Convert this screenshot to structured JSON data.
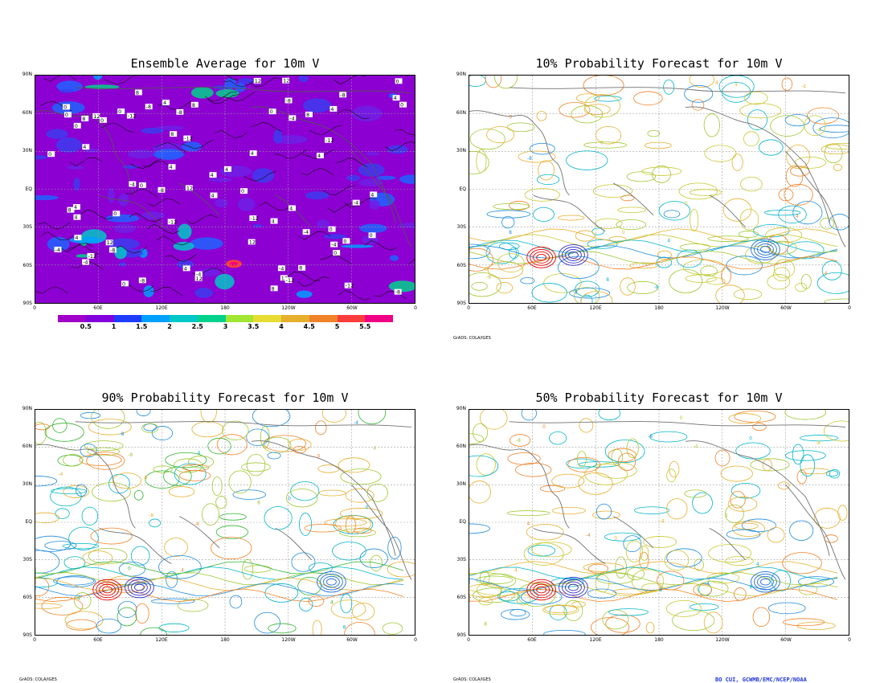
{
  "panels": [
    {
      "id": "ensemble",
      "title": "Ensemble Average for 10m V",
      "credit": ""
    },
    {
      "id": "p10",
      "title": "10% Probability Forecast for 10m V",
      "credit": "GrADS: COLA/IGES"
    },
    {
      "id": "p90",
      "title": "90% Probability Forecast for 10m V",
      "credit": "GrADS: COLA/IGES"
    },
    {
      "id": "p50",
      "title": "50% Probability Forecast for 10m V",
      "credit": "GrADS: COLA/IGES"
    }
  ],
  "axes": {
    "y_ticks": [
      "90N",
      "60N",
      "30N",
      "EQ",
      "30S",
      "60S",
      "90S"
    ],
    "x_ticks": [
      "0",
      "60E",
      "120E",
      "180",
      "120W",
      "60W",
      "0"
    ]
  },
  "colorbar": {
    "labels": [
      "0.5",
      "1",
      "1.5",
      "2",
      "2.5",
      "3",
      "3.5",
      "4",
      "4.5",
      "5",
      "5.5"
    ],
    "colors": [
      "#a000c8",
      "#8200dc",
      "#1e3cff",
      "#00a0ff",
      "#00c8c8",
      "#00d28c",
      "#a0e632",
      "#e6dc32",
      "#e6af2d",
      "#f08228",
      "#fa3c3c",
      "#f00082"
    ]
  },
  "footer": {
    "author": "BO CUI, GCWMB/EMC/NCEP/NOAA"
  },
  "chart_data": [
    {
      "type": "heatmap",
      "title": "Ensemble Average for 10m V",
      "xlabel": "",
      "ylabel": "",
      "xlim": [
        0,
        360
      ],
      "ylim": [
        -90,
        90
      ],
      "x_ticks": [
        "0",
        "60E",
        "120E",
        "180",
        "120W",
        "60W",
        "0"
      ],
      "y_ticks": [
        "90N",
        "60N",
        "30N",
        "EQ",
        "30S",
        "60S",
        "90S"
      ],
      "shading_levels": [
        0.5,
        1,
        1.5,
        2,
        2.5,
        3,
        3.5,
        4,
        4.5,
        5,
        5.5
      ],
      "contour_labels_visible": [
        "-4",
        "0",
        "4",
        "-8",
        "8",
        "-12",
        "12"
      ]
    },
    {
      "type": "heatmap",
      "title": "10% Probability Forecast for 10m V",
      "xlim": [
        0,
        360
      ],
      "ylim": [
        -90,
        90
      ],
      "x_ticks": [
        "0",
        "60E",
        "120E",
        "180",
        "120W",
        "60W",
        "0"
      ],
      "y_ticks": [
        "90N",
        "60N",
        "30N",
        "EQ",
        "30S",
        "60S",
        "90S"
      ],
      "contour_labels_visible": [
        "-4",
        "0",
        "4",
        "8",
        "-8",
        "12"
      ]
    },
    {
      "type": "heatmap",
      "title": "90% Probability Forecast for 10m V",
      "xlim": [
        0,
        360
      ],
      "ylim": [
        -90,
        90
      ],
      "x_ticks": [
        "0",
        "60E",
        "120E",
        "180",
        "120W",
        "60W",
        "0"
      ],
      "y_ticks": [
        "90N",
        "60N",
        "30N",
        "EQ",
        "30S",
        "60S",
        "90S"
      ],
      "contour_labels_visible": [
        "-4",
        "0",
        "4",
        "8",
        "-8",
        "12"
      ]
    },
    {
      "type": "heatmap",
      "title": "50% Probability Forecast for 10m V",
      "xlim": [
        0,
        360
      ],
      "ylim": [
        -90,
        90
      ],
      "x_ticks": [
        "0",
        "60E",
        "120E",
        "180",
        "120W",
        "60W",
        "0"
      ],
      "y_ticks": [
        "90N",
        "60N",
        "30N",
        "EQ",
        "30S",
        "60S",
        "90S"
      ],
      "contour_labels_visible": [
        "-4",
        "0",
        "4",
        "8",
        "-8",
        "-12",
        "12"
      ]
    }
  ]
}
